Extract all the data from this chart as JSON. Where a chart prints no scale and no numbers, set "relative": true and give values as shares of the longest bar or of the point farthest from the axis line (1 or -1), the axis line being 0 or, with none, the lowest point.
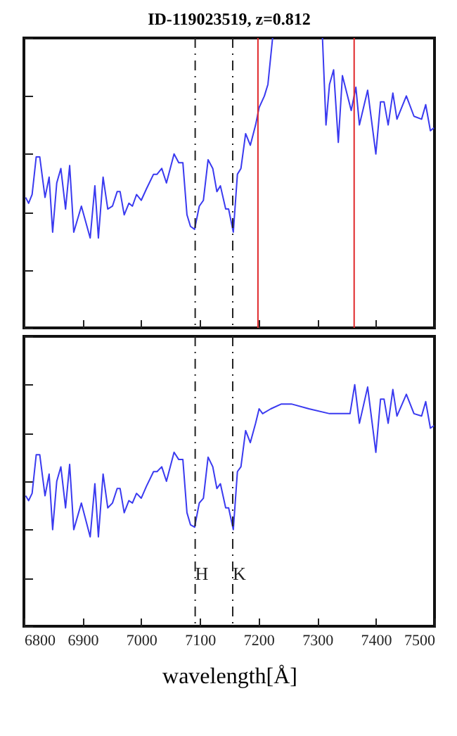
{
  "chart_data": [
    {
      "type": "line",
      "title": "ID-119023519, z=0.812",
      "relative": true,
      "tick_labels": false,
      "xlim": [
        6800,
        7500
      ],
      "xticks": [
        6800,
        6900,
        7000,
        7100,
        7200,
        7300,
        7400,
        7500
      ],
      "x": [
        6803,
        6808,
        6814,
        6821,
        6827,
        6836,
        6843,
        6849,
        6856,
        6863,
        6871,
        6878,
        6885,
        6898,
        6913,
        6921,
        6927,
        6935,
        6943,
        6951,
        6959,
        6964,
        6971,
        6979,
        6985,
        6992,
        7000,
        7009,
        7021,
        7027,
        7035,
        7043,
        7056,
        7064,
        7071,
        7078,
        7084,
        7091,
        7099,
        7106,
        7114,
        7122,
        7129,
        7135,
        7144,
        7149,
        7157,
        7164,
        7170,
        7178,
        7186,
        7195,
        7201,
        7210,
        7216,
        7224,
        7266,
        7309,
        7315,
        7321,
        7328,
        7336,
        7343,
        7358,
        7366,
        7372,
        7386,
        7400,
        7408,
        7414,
        7421,
        7429,
        7436,
        7452,
        7465,
        7478,
        7485,
        7493,
        7499
      ],
      "series": [
        {
          "color": "#3a3af0",
          "values": [
            0.45,
            0.43,
            0.46,
            0.59,
            0.59,
            0.45,
            0.52,
            0.33,
            0.5,
            0.55,
            0.41,
            0.56,
            0.33,
            0.42,
            0.31,
            0.49,
            0.31,
            0.52,
            0.41,
            0.42,
            0.47,
            0.47,
            0.39,
            0.43,
            0.42,
            0.46,
            0.44,
            0.48,
            0.53,
            0.53,
            0.55,
            0.5,
            0.6,
            0.57,
            0.57,
            0.39,
            0.35,
            0.34,
            0.42,
            0.44,
            0.58,
            0.55,
            0.47,
            0.49,
            0.41,
            0.41,
            0.33,
            0.53,
            0.55,
            0.67,
            0.63,
            0.7,
            0.76,
            0.8,
            0.84,
            1.0,
            null,
            1.0,
            0.7,
            0.84,
            0.89,
            0.64,
            0.87,
            0.75,
            0.83,
            0.7,
            0.82,
            0.6,
            0.78,
            0.78,
            0.7,
            0.81,
            0.72,
            0.8,
            0.73,
            0.72,
            0.77,
            0.68,
            0.69
          ]
        }
      ],
      "ref_lines": [
        {
          "axis": "x",
          "value": 7092,
          "color": "#222222",
          "line_style": "dashed"
        },
        {
          "axis": "x",
          "value": 7156,
          "color": "#222222",
          "line_style": "dashed"
        },
        {
          "axis": "x",
          "value": 7199,
          "color": "#e0282a",
          "line_style": "solid"
        },
        {
          "axis": "x",
          "value": 7363,
          "color": "#e0282a",
          "line_style": "solid"
        }
      ]
    },
    {
      "type": "line",
      "xlabel": "wavelength[Å]",
      "relative": true,
      "tick_labels": "x",
      "xlim": [
        6800,
        7500
      ],
      "xticks": [
        6800,
        6900,
        7000,
        7100,
        7200,
        7300,
        7400,
        7500
      ],
      "x": [
        6803,
        6808,
        6814,
        6821,
        6827,
        6836,
        6843,
        6849,
        6856,
        6863,
        6871,
        6878,
        6885,
        6898,
        6913,
        6921,
        6927,
        6935,
        6943,
        6951,
        6959,
        6964,
        6971,
        6979,
        6985,
        6992,
        7000,
        7009,
        7021,
        7027,
        7035,
        7043,
        7056,
        7064,
        7071,
        7078,
        7084,
        7091,
        7099,
        7106,
        7114,
        7122,
        7129,
        7135,
        7144,
        7149,
        7157,
        7164,
        7170,
        7178,
        7186,
        7195,
        7201,
        7207,
        7221,
        7239,
        7256,
        7286,
        7321,
        7356,
        7364,
        7372,
        7386,
        7400,
        7408,
        7414,
        7421,
        7429,
        7436,
        7452,
        7465,
        7478,
        7485,
        7493,
        7499
      ],
      "series": [
        {
          "color": "#3a3af0",
          "values": [
            0.54,
            0.52,
            0.55,
            0.71,
            0.71,
            0.54,
            0.63,
            0.4,
            0.6,
            0.66,
            0.49,
            0.67,
            0.4,
            0.51,
            0.37,
            0.59,
            0.37,
            0.63,
            0.49,
            0.51,
            0.57,
            0.57,
            0.47,
            0.52,
            0.51,
            0.55,
            0.53,
            0.58,
            0.64,
            0.64,
            0.66,
            0.6,
            0.72,
            0.69,
            0.69,
            0.47,
            0.42,
            0.41,
            0.51,
            0.53,
            0.7,
            0.66,
            0.57,
            0.59,
            0.49,
            0.49,
            0.4,
            0.64,
            0.66,
            0.81,
            0.76,
            0.84,
            0.9,
            0.88,
            0.9,
            0.92,
            0.92,
            0.9,
            0.88,
            0.88,
            1.0,
            0.84,
            0.99,
            0.72,
            0.94,
            0.94,
            0.84,
            0.98,
            0.87,
            0.96,
            0.88,
            0.87,
            0.93,
            0.82,
            0.83
          ]
        }
      ],
      "ref_lines": [
        {
          "axis": "x",
          "value": 7092,
          "label": "H",
          "color": "#222222",
          "line_style": "dashed"
        },
        {
          "axis": "x",
          "value": 7156,
          "label": "K",
          "color": "#222222",
          "line_style": "dashed"
        }
      ]
    }
  ]
}
